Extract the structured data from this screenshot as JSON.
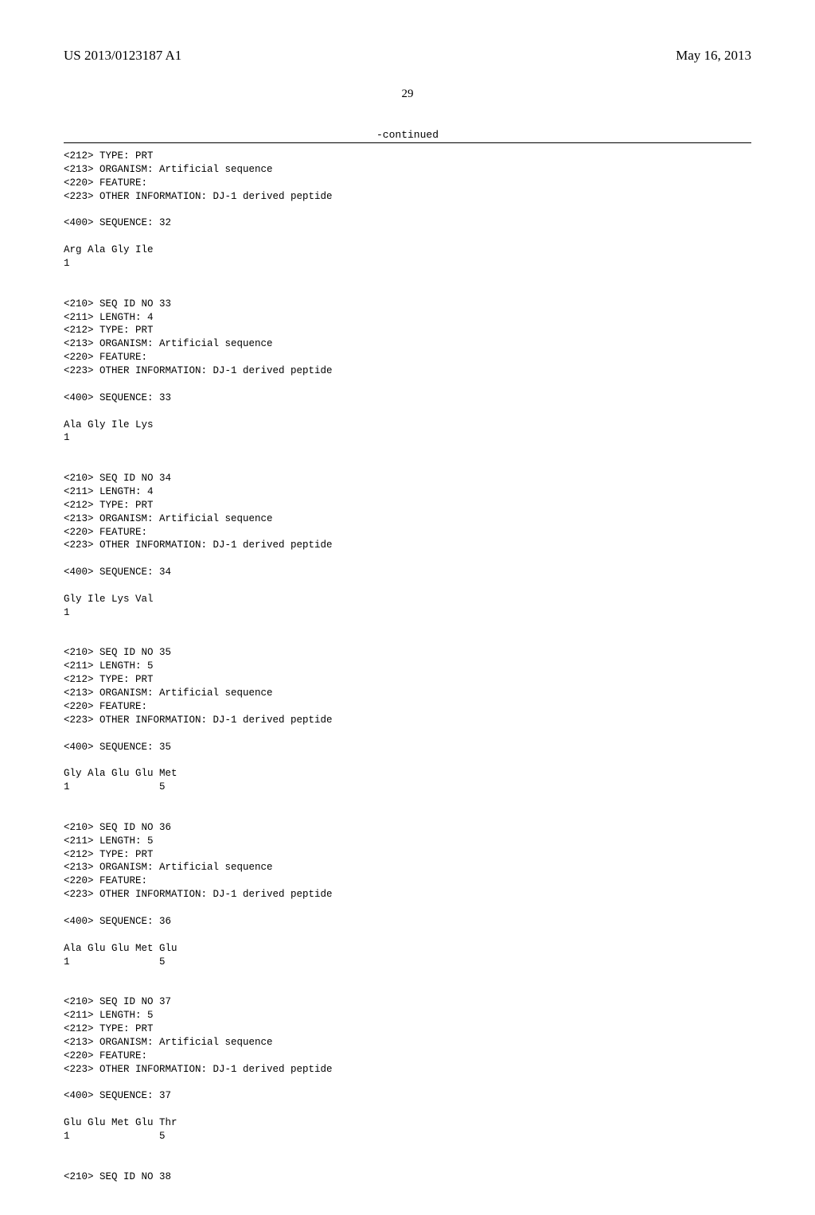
{
  "header": {
    "document_id": "US 2013/0123187 A1",
    "date": "May 16, 2013"
  },
  "page_number": "29",
  "continued_label": "-continued",
  "listing_text": "<212> TYPE: PRT\n<213> ORGANISM: Artificial sequence\n<220> FEATURE:\n<223> OTHER INFORMATION: DJ-1 derived peptide\n\n<400> SEQUENCE: 32\n\nArg Ala Gly Ile\n1\n\n\n<210> SEQ ID NO 33\n<211> LENGTH: 4\n<212> TYPE: PRT\n<213> ORGANISM: Artificial sequence\n<220> FEATURE:\n<223> OTHER INFORMATION: DJ-1 derived peptide\n\n<400> SEQUENCE: 33\n\nAla Gly Ile Lys\n1\n\n\n<210> SEQ ID NO 34\n<211> LENGTH: 4\n<212> TYPE: PRT\n<213> ORGANISM: Artificial sequence\n<220> FEATURE:\n<223> OTHER INFORMATION: DJ-1 derived peptide\n\n<400> SEQUENCE: 34\n\nGly Ile Lys Val\n1\n\n\n<210> SEQ ID NO 35\n<211> LENGTH: 5\n<212> TYPE: PRT\n<213> ORGANISM: Artificial sequence\n<220> FEATURE:\n<223> OTHER INFORMATION: DJ-1 derived peptide\n\n<400> SEQUENCE: 35\n\nGly Ala Glu Glu Met\n1               5\n\n\n<210> SEQ ID NO 36\n<211> LENGTH: 5\n<212> TYPE: PRT\n<213> ORGANISM: Artificial sequence\n<220> FEATURE:\n<223> OTHER INFORMATION: DJ-1 derived peptide\n\n<400> SEQUENCE: 36\n\nAla Glu Glu Met Glu\n1               5\n\n\n<210> SEQ ID NO 37\n<211> LENGTH: 5\n<212> TYPE: PRT\n<213> ORGANISM: Artificial sequence\n<220> FEATURE:\n<223> OTHER INFORMATION: DJ-1 derived peptide\n\n<400> SEQUENCE: 37\n\nGlu Glu Met Glu Thr\n1               5\n\n\n<210> SEQ ID NO 38"
}
